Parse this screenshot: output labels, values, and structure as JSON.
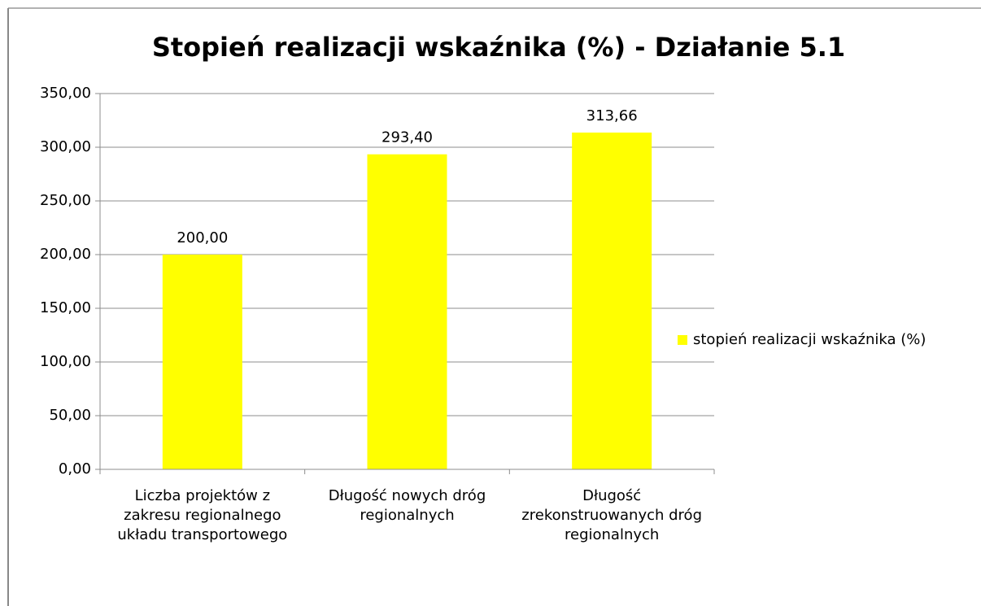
{
  "chart_data": {
    "type": "bar",
    "title": "Stopień realizacji wskaźnika (%) - Działanie 5.1",
    "categories": [
      "Liczba projektów z zakresu regionalnego układu transportowego",
      "Długość nowych dróg regionalnych",
      "Długość zrekonstruowanych dróg regionalnych"
    ],
    "series": [
      {
        "name": "stopień realizacji wskaźnika (%)",
        "color": "#ffff00",
        "values": [
          200,
          293.4,
          313.66
        ],
        "value_labels": [
          "200,00",
          "293,40",
          "313,66"
        ]
      }
    ],
    "ylim": [
      0,
      350
    ],
    "yticks": [
      {
        "value": 0,
        "label": "0,00"
      },
      {
        "value": 50,
        "label": "50,00"
      },
      {
        "value": 100,
        "label": "100,00"
      },
      {
        "value": 150,
        "label": "150,00"
      },
      {
        "value": 200,
        "label": "200,00"
      },
      {
        "value": 250,
        "label": "250,00"
      },
      {
        "value": 300,
        "label": "300,00"
      },
      {
        "value": 350,
        "label": "350,00"
      }
    ],
    "grid": true,
    "legend": "right"
  }
}
